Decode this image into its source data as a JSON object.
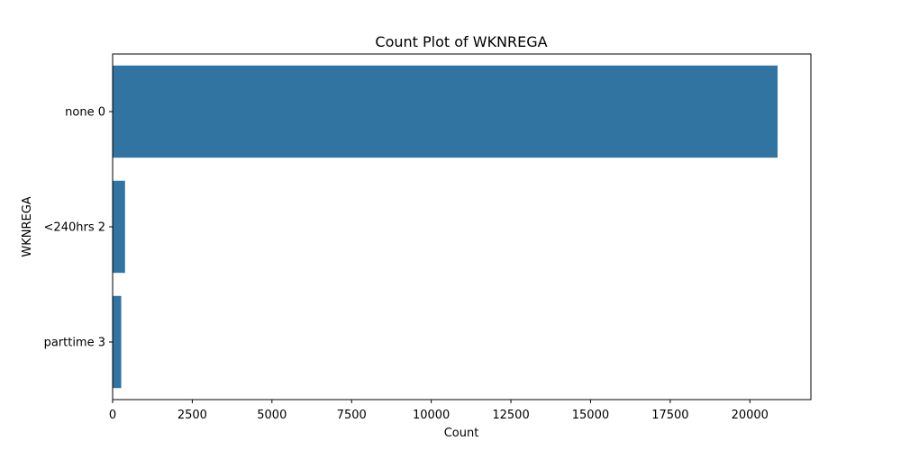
{
  "chart_data": {
    "type": "bar",
    "orientation": "horizontal",
    "title": "Count Plot of WKNREGA",
    "xlabel": "Count",
    "ylabel": "WKNREGA",
    "categories": [
      "none 0",
      "<240hrs 2",
      "parttime 3"
    ],
    "values": [
      20870,
      390,
      270
    ],
    "xlim": [
      0,
      21915
    ],
    "xticks": [
      0,
      2500,
      5000,
      7500,
      10000,
      12500,
      15000,
      17500,
      20000
    ],
    "xtick_labels": [
      "0",
      "2500",
      "5000",
      "7500",
      "10000",
      "12500",
      "15000",
      "17500",
      "20000"
    ],
    "bar_color": "#3274a1",
    "grid": false,
    "legend": "none"
  }
}
